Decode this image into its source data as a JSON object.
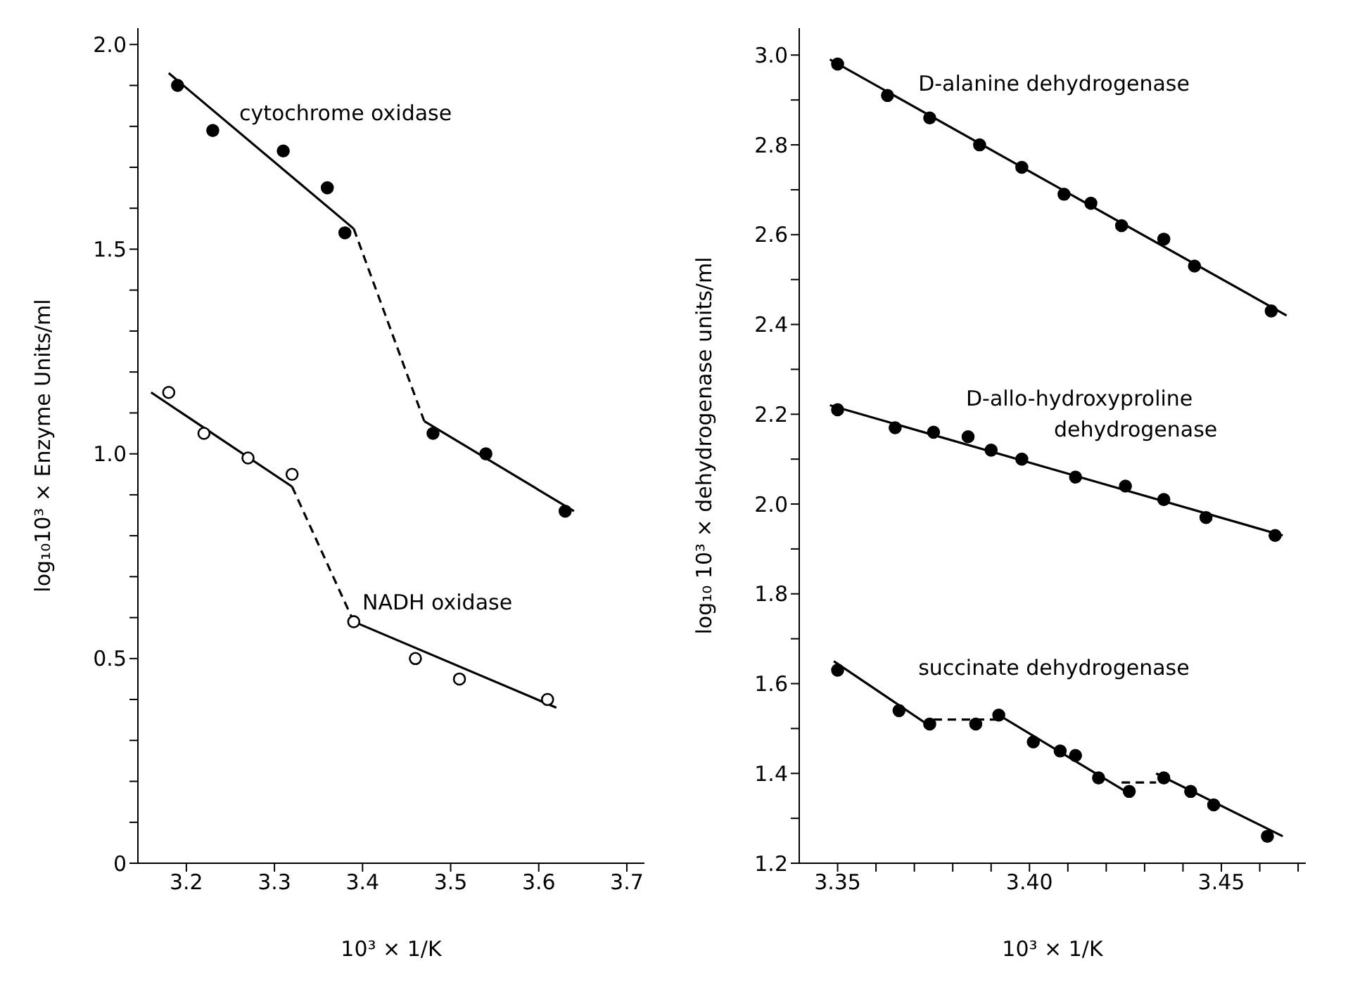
{
  "chart_data": [
    {
      "type": "scatter",
      "xlabel": "10³ × 1/K",
      "ylabel": "log₁₀10³ × Enzyme Units/ml",
      "xlim": [
        3.145,
        3.72
      ],
      "ylim": [
        0,
        2.04
      ],
      "xticks": [
        3.2,
        3.3,
        3.4,
        3.5,
        3.6,
        3.7
      ],
      "yticks": [
        0,
        {
          "value": 0.1,
          "label": null
        },
        {
          "value": 0.2,
          "label": null
        },
        {
          "value": 0.3,
          "label": null
        },
        {
          "value": 0.4,
          "label": null
        },
        0.5,
        {
          "value": 0.6,
          "label": null
        },
        {
          "value": 0.7,
          "label": null
        },
        {
          "value": 0.8,
          "label": null
        },
        {
          "value": 0.9,
          "label": null
        },
        {
          "value": 1.0,
          "label": "1.0"
        },
        {
          "value": 1.1,
          "label": null
        },
        {
          "value": 1.2,
          "label": null
        },
        {
          "value": 1.3,
          "label": null
        },
        {
          "value": 1.4,
          "label": null
        },
        1.5,
        {
          "value": 1.6,
          "label": null
        },
        {
          "value": 1.7,
          "label": null
        },
        {
          "value": 1.8,
          "label": null
        },
        {
          "value": 1.9,
          "label": null
        },
        {
          "value": 2.0,
          "label": "2.0"
        }
      ],
      "series": [
        {
          "marker": "circle",
          "color": "#000000",
          "x": [
            3.19,
            3.23,
            3.31,
            3.36,
            3.38,
            3.48,
            3.54,
            3.63
          ],
          "values": [
            1.9,
            1.79,
            1.74,
            1.65,
            1.54,
            1.05,
            1.0,
            0.86
          ]
        },
        {
          "marker": "circle",
          "color": "#ffffff",
          "x": [
            3.18,
            3.22,
            3.27,
            3.32,
            3.39,
            3.46,
            3.51,
            3.61
          ],
          "values": [
            1.15,
            1.05,
            0.99,
            0.95,
            0.59,
            0.5,
            0.45,
            0.4
          ]
        },
        {
          "type": "line",
          "marker": "none",
          "line_style": "solid",
          "color": "#000000",
          "x": [
            3.18,
            3.39
          ],
          "values": [
            1.93,
            1.55
          ]
        },
        {
          "type": "line",
          "marker": "none",
          "line_style": "dashed",
          "color": "#000000",
          "x": [
            3.39,
            3.47
          ],
          "values": [
            1.55,
            1.08
          ]
        },
        {
          "type": "line",
          "marker": "none",
          "line_style": "solid",
          "color": "#000000",
          "x": [
            3.47,
            3.64
          ],
          "values": [
            1.08,
            0.86
          ]
        },
        {
          "type": "line",
          "marker": "none",
          "line_style": "solid",
          "color": "#000000",
          "x": [
            3.16,
            3.32
          ],
          "values": [
            1.15,
            0.92
          ]
        },
        {
          "type": "line",
          "marker": "none",
          "line_style": "dashed",
          "color": "#000000",
          "x": [
            3.32,
            3.39
          ],
          "values": [
            0.92,
            0.59
          ]
        },
        {
          "type": "line",
          "marker": "none",
          "line_style": "solid",
          "color": "#000000",
          "x": [
            3.39,
            3.62
          ],
          "values": [
            0.59,
            0.38
          ]
        }
      ],
      "annotations": [
        "cytochrome oxidase",
        "NADH oxidase"
      ]
    },
    {
      "type": "scatter",
      "xlabel": "10³ × 1/K",
      "ylabel": "log₁₀ 10³ × dehydrogenase units/ml",
      "xlim": [
        3.34,
        3.472
      ],
      "ylim": [
        1.2,
        3.06
      ],
      "xticks": [
        3.35,
        {
          "value": 3.36,
          "label": null
        },
        {
          "value": 3.37,
          "label": null
        },
        {
          "value": 3.38,
          "label": null
        },
        {
          "value": 3.39,
          "label": null
        },
        {
          "value": 3.4,
          "label": "3.40"
        },
        {
          "value": 3.41,
          "label": null
        },
        {
          "value": 3.42,
          "label": null
        },
        {
          "value": 3.43,
          "label": null
        },
        {
          "value": 3.44,
          "label": null
        },
        3.45,
        {
          "value": 3.46,
          "label": null
        },
        {
          "value": 3.47,
          "label": null
        }
      ],
      "yticks": [
        1.2,
        {
          "value": 1.3,
          "label": null
        },
        1.4,
        {
          "value": 1.5,
          "label": null
        },
        1.6,
        {
          "value": 1.7,
          "label": null
        },
        1.8,
        {
          "value": 1.9,
          "label": null
        },
        {
          "value": 2.0,
          "label": "2.0"
        },
        {
          "value": 2.1,
          "label": null
        },
        2.2,
        {
          "value": 2.3,
          "label": null
        },
        2.4,
        {
          "value": 2.5,
          "label": null
        },
        2.6,
        {
          "value": 2.7,
          "label": null
        },
        2.8,
        {
          "value": 2.9,
          "label": null
        },
        {
          "value": 3.0,
          "label": "3.0"
        }
      ],
      "series": [
        {
          "marker": "circle",
          "color": "#000000",
          "x": [
            3.35,
            3.363,
            3.374,
            3.387,
            3.398,
            3.409,
            3.416,
            3.424,
            3.435,
            3.443,
            3.463
          ],
          "values": [
            2.98,
            2.91,
            2.86,
            2.8,
            2.75,
            2.69,
            2.67,
            2.62,
            2.59,
            2.53,
            2.43
          ]
        },
        {
          "marker": "circle",
          "color": "#000000",
          "x": [
            3.35,
            3.365,
            3.375,
            3.384,
            3.39,
            3.398,
            3.412,
            3.425,
            3.435,
            3.446,
            3.464
          ],
          "values": [
            2.21,
            2.17,
            2.16,
            2.15,
            2.12,
            2.1,
            2.06,
            2.04,
            2.01,
            1.97,
            1.93
          ]
        },
        {
          "marker": "circle",
          "color": "#000000",
          "x": [
            3.35,
            3.366,
            3.374,
            3.386,
            3.392,
            3.401,
            3.408,
            3.412,
            3.418,
            3.426,
            3.435,
            3.442,
            3.448,
            3.462
          ],
          "values": [
            1.63,
            1.54,
            1.51,
            1.51,
            1.53,
            1.47,
            1.45,
            1.44,
            1.39,
            1.36,
            1.39,
            1.36,
            1.33,
            1.26
          ]
        },
        {
          "type": "line",
          "marker": "none",
          "line_style": "solid",
          "color": "#000000",
          "x": [
            3.348,
            3.467
          ],
          "values": [
            2.99,
            2.42
          ]
        },
        {
          "type": "line",
          "marker": "none",
          "line_style": "solid",
          "color": "#000000",
          "x": [
            3.348,
            3.466
          ],
          "values": [
            2.22,
            1.93
          ]
        },
        {
          "type": "line",
          "marker": "none",
          "line_style": "solid",
          "color": "#000000",
          "x": [
            3.349,
            3.375
          ],
          "values": [
            1.65,
            1.5
          ]
        },
        {
          "type": "line",
          "marker": "none",
          "line_style": "dashed",
          "color": "#000000",
          "x": [
            3.375,
            3.392
          ],
          "values": [
            1.52,
            1.52
          ]
        },
        {
          "type": "line",
          "marker": "none",
          "line_style": "solid",
          "color": "#000000",
          "x": [
            3.392,
            3.427
          ],
          "values": [
            1.53,
            1.35
          ]
        },
        {
          "type": "line",
          "marker": "none",
          "line_style": "dashed",
          "color": "#000000",
          "x": [
            3.424,
            3.433
          ],
          "values": [
            1.38,
            1.38
          ]
        },
        {
          "type": "line",
          "marker": "none",
          "line_style": "solid",
          "color": "#000000",
          "x": [
            3.433,
            3.466
          ],
          "values": [
            1.4,
            1.26
          ]
        }
      ],
      "annotations": [
        "D-alanine dehydrogenase",
        "D-allo-hydroxyproline\ndehydrogenase",
        "succinate dehydrogenase"
      ]
    }
  ]
}
